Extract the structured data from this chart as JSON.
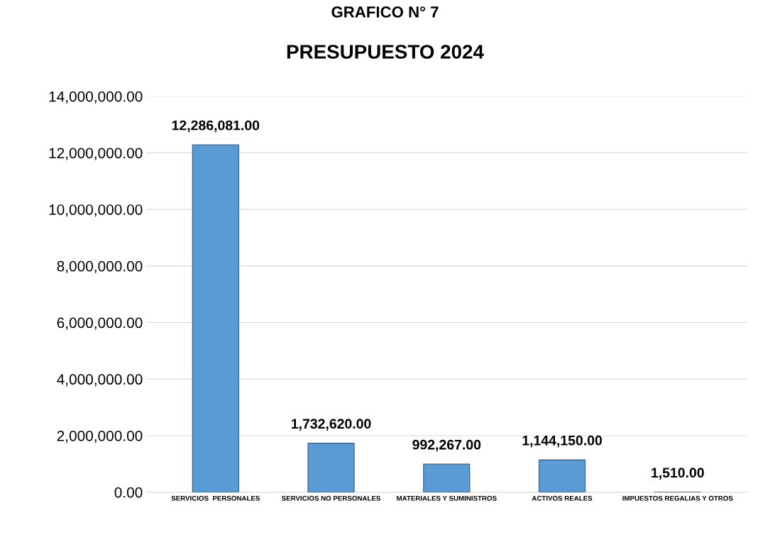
{
  "chart_data": {
    "type": "bar",
    "title": "PRESUPUESTO 2024",
    "annotations": [
      "GRAFICO N° 7"
    ],
    "categories": [
      "SERVICIOS  PERSONALES",
      "SERVICIOS NO PERSONALES",
      "MATERIALES Y SUMINISTROS",
      "ACTIVOS REALES",
      "IMPUESTOS REGALIAS Y OTROS"
    ],
    "values": [
      12286081,
      1732620,
      992267,
      1144150,
      1510
    ],
    "value_labels": [
      "12,286,081.00",
      "1,732,620.00",
      "992,267.00",
      "1,144,150.00",
      "1,510.00"
    ],
    "color": "#5b9bd5",
    "ylim": [
      0,
      14000000
    ],
    "yticks": [
      {
        "value": 0,
        "label": "0.00"
      },
      {
        "value": 2000000,
        "label": "2,000,000.00"
      },
      {
        "value": 4000000,
        "label": "4,000,000.00"
      },
      {
        "value": 6000000,
        "label": "6,000,000.00"
      },
      {
        "value": 8000000,
        "label": "8,000,000.00"
      },
      {
        "value": 10000000,
        "label": "10,000,000.00"
      },
      {
        "value": 12000000,
        "label": "12,000,000.00"
      },
      {
        "value": 14000000,
        "label": "14,000,000.00"
      }
    ],
    "grid": "y"
  }
}
